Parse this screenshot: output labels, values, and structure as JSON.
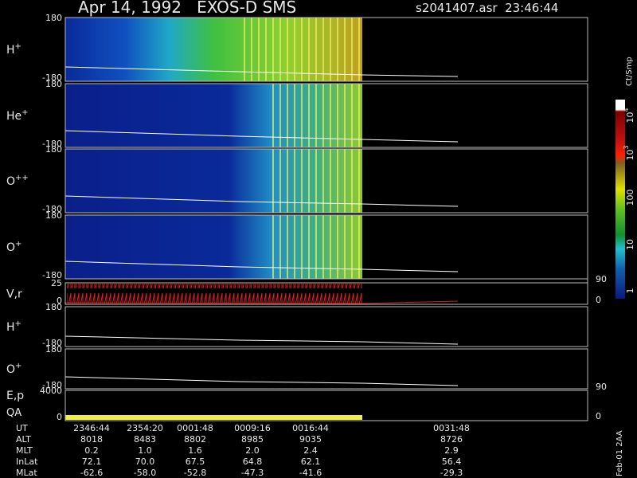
{
  "header": {
    "title": "Apr 14, 1992   EXOS-D SMS",
    "file": "s2041407.asr  23:46:44"
  },
  "panels": [
    {
      "label": {
        "base": "H",
        "sup": "+"
      },
      "ticks": [
        "180",
        "-180"
      ]
    },
    {
      "label": {
        "base": "He",
        "sup": "+"
      },
      "ticks": [
        "180",
        "-180"
      ]
    },
    {
      "label": {
        "base": "O",
        "sup": "++"
      },
      "ticks": [
        "180",
        "-180"
      ]
    },
    {
      "label": {
        "base": "O",
        "sup": "+"
      },
      "ticks": [
        "180",
        "-180"
      ]
    },
    {
      "label": {
        "base": "V,r"
      },
      "ticks": [
        "25",
        "0"
      ],
      "right_ticks": [
        "90",
        "0"
      ]
    },
    {
      "label": {
        "base": "H",
        "sup": "+"
      },
      "ticks": [
        "180",
        "-180"
      ]
    },
    {
      "label": {
        "base": "O",
        "sup": "+"
      },
      "ticks": [
        "180",
        "-180"
      ]
    },
    {
      "label": {
        "base": "E,p"
      },
      "label2": "QA",
      "ticks": [
        "4000",
        "0"
      ],
      "right_ticks": [
        "90",
        "0"
      ]
    }
  ],
  "colorbar": {
    "title": "Ct/Smp",
    "labels": [
      {
        "base": "10",
        "sup": "4"
      },
      {
        "base": "10",
        "sup": "3"
      },
      {
        "base": "100"
      },
      {
        "base": "10"
      },
      {
        "base": "1"
      }
    ]
  },
  "table": {
    "rows": [
      {
        "name": "UT",
        "cells": [
          "2346:44",
          "2354:20",
          "0001:48",
          "0009:16",
          "0016:44",
          "0031:48"
        ]
      },
      {
        "name": "ALT",
        "cells": [
          "8018",
          "8483",
          "8802",
          "8985",
          "9035",
          "8726"
        ]
      },
      {
        "name": "MLT",
        "cells": [
          "0.2",
          "1.0",
          "1.6",
          "2.0",
          "2.4",
          "2.9"
        ]
      },
      {
        "name": "InLat",
        "cells": [
          "72.1",
          "70.0",
          "67.5",
          "64.8",
          "62.1",
          "56.4"
        ]
      },
      {
        "name": "MLat",
        "cells": [
          "-62.6",
          "-58.0",
          "-52.8",
          "-47.3",
          "-41.6",
          "-29.3"
        ]
      }
    ]
  },
  "footer": "Feb-01 2AA"
}
